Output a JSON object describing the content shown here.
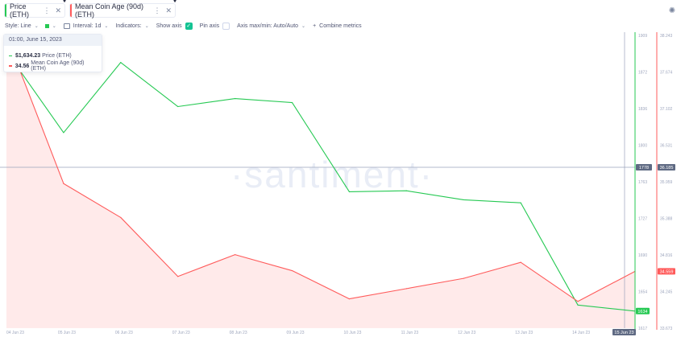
{
  "tabs": [
    {
      "label": "Price (ETH)",
      "color": "#26c953"
    },
    {
      "label": "Mean Coin Age (90d) (ETH)",
      "color": "#ff5b5b"
    }
  ],
  "toolbar": {
    "style_label": "Style: Line",
    "interval_label": "Interval: 1d",
    "indicators_label": "Indicators:",
    "show_axis_label": "Show axis",
    "pin_axis_label": "Pin axis",
    "axis_minmax_label": "Axis max/min: Auto/Auto",
    "combine_label": "Combine metrics"
  },
  "tooltip": {
    "date": "01:00, June 15, 2023",
    "rows": [
      {
        "value": "$1,634.23",
        "label": "Price (ETH)",
        "color": "#26c953"
      },
      {
        "value": "34.56",
        "label": "Mean Coin Age (90d) (ETH)",
        "color": "#ff5b5b"
      }
    ]
  },
  "watermark": "·santiment·",
  "chart_data": {
    "type": "line",
    "categories": [
      "04 Jun 23",
      "05 Jun 23",
      "06 Jun 23",
      "07 Jun 23",
      "08 Jun 23",
      "09 Jun 23",
      "10 Jun 23",
      "11 Jun 23",
      "12 Jun 23",
      "13 Jun 23",
      "14 Jun 23",
      "15 Jun 23"
    ],
    "series": [
      {
        "name": "Price (ETH)",
        "color": "#26c953",
        "axis": "price",
        "values": [
          1893,
          1812,
          1882,
          1838,
          1846,
          1842,
          1753,
          1754,
          1745,
          1742,
          1640,
          1634
        ]
      },
      {
        "name": "Mean Coin Age (90d) (ETH)",
        "color": "#ff5b5b",
        "axis": "age",
        "fill": true,
        "values": [
          38.24,
          35.93,
          35.4,
          34.48,
          34.82,
          34.57,
          34.13,
          34.29,
          34.45,
          34.7,
          34.09,
          34.56
        ]
      }
    ],
    "price_ticks": [
      "1909",
      "1872",
      "1836",
      "1800",
      "1763",
      "1727",
      "1690",
      "1654",
      "1617"
    ],
    "age_ticks": [
      "38.243",
      "37.674",
      "37.102",
      "36.531",
      "35.959",
      "35.388",
      "34.816",
      "34.245",
      "33.673"
    ],
    "price_range": [
      1617,
      1909
    ],
    "age_range": [
      33.673,
      38.243
    ],
    "crosshair": {
      "price_label": "1778",
      "age_label": "36.185",
      "date_label": "15 Jun 23"
    },
    "last_price_label": "1634",
    "last_age_label": "34.559"
  }
}
